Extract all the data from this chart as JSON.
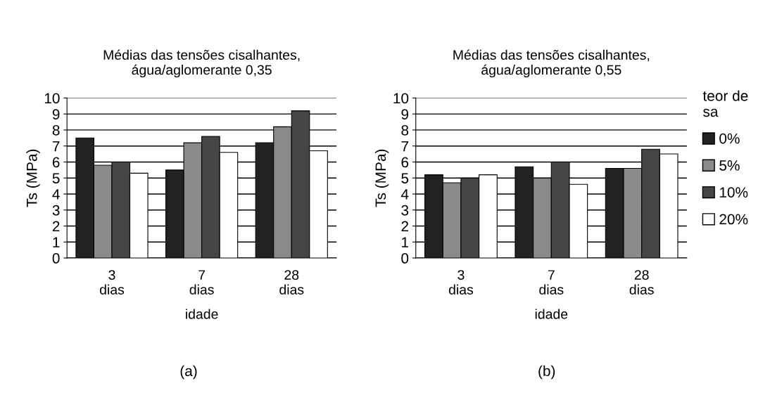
{
  "chart_data": [
    {
      "type": "bar",
      "title": "Médias das tensões cisalhantes,\nágua/aglomerante 0,35",
      "xlabel": "idade",
      "ylabel": "Ts (MPa)",
      "categories": [
        "3\ndias",
        "7\ndias",
        "28\ndias"
      ],
      "series": [
        {
          "color": "#222222",
          "values": [
            7.5,
            5.5,
            7.2
          ]
        },
        {
          "color": "#8a8a8a",
          "values": [
            5.8,
            7.2,
            8.2
          ]
        },
        {
          "color": "#454545",
          "values": [
            6.0,
            7.6,
            9.2
          ]
        },
        {
          "color": "#ffffff",
          "values": [
            5.3,
            6.6,
            6.7
          ]
        }
      ],
      "ylim": [
        0,
        10
      ],
      "yticks": [
        0,
        1,
        2,
        3,
        4,
        5,
        6,
        7,
        8,
        9,
        10
      ],
      "grid": "y",
      "annotations": [
        "(a)"
      ]
    },
    {
      "type": "bar",
      "title": "Médias das tensões cisalhantes,\nágua/aglomerante 0,55",
      "xlabel": "idade",
      "ylabel": "Ts (MPa)",
      "categories": [
        "3\ndias",
        "7\ndias",
        "28\ndias"
      ],
      "legend_title": "teor de\nsa",
      "legend": "right",
      "series": [
        {
          "name": "0%",
          "color": "#222222",
          "values": [
            5.2,
            5.7,
            5.6
          ]
        },
        {
          "name": "5%",
          "color": "#8a8a8a",
          "values": [
            4.7,
            5.0,
            5.6
          ]
        },
        {
          "name": "10%",
          "color": "#454545",
          "values": [
            5.0,
            6.0,
            6.8
          ]
        },
        {
          "name": "20%",
          "color": "#ffffff",
          "values": [
            5.2,
            4.6,
            6.5
          ]
        }
      ],
      "ylim": [
        0,
        10
      ],
      "yticks": [
        0,
        1,
        2,
        3,
        4,
        5,
        6,
        7,
        8,
        9,
        10
      ],
      "grid": "y",
      "annotations": [
        "(b)"
      ]
    }
  ]
}
